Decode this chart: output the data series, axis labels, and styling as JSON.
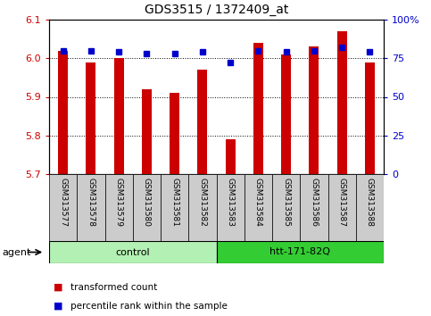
{
  "title": "GDS3515 / 1372409_at",
  "samples": [
    "GSM313577",
    "GSM313578",
    "GSM313579",
    "GSM313580",
    "GSM313581",
    "GSM313582",
    "GSM313583",
    "GSM313584",
    "GSM313585",
    "GSM313586",
    "GSM313587",
    "GSM313588"
  ],
  "red_values": [
    6.02,
    5.99,
    6.0,
    5.92,
    5.91,
    5.97,
    5.79,
    6.04,
    6.01,
    6.03,
    6.07,
    5.99
  ],
  "blue_values": [
    80,
    80,
    79,
    78,
    78,
    79,
    72,
    80,
    79,
    80,
    82,
    79
  ],
  "ymin": 5.7,
  "ymax": 6.1,
  "yticks": [
    5.7,
    5.8,
    5.9,
    6.0,
    6.1
  ],
  "y2ticks": [
    0,
    25,
    50,
    75,
    100
  ],
  "y2labels": [
    "0",
    "25",
    "50",
    "75",
    "100%"
  ],
  "agent_groups": [
    {
      "label": "control",
      "start": 0,
      "end": 6,
      "color": "#b3f0b3"
    },
    {
      "label": "htt-171-82Q",
      "start": 6,
      "end": 12,
      "color": "#33cc33"
    }
  ],
  "agent_label": "agent",
  "bar_color": "#cc0000",
  "dot_color": "#0000cc",
  "bg_color": "#ffffff",
  "plot_bg": "#ffffff",
  "tick_label_color_left": "#cc0000",
  "tick_label_color_right": "#0000cc",
  "grid_color": "#000000",
  "sample_bg": "#cccccc",
  "bar_width": 0.35
}
